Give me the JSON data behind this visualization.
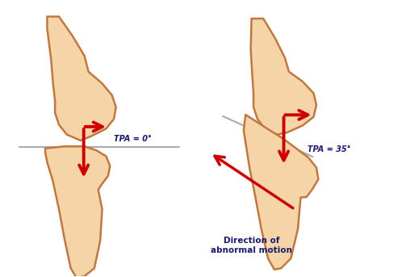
{
  "bg_color": "#ffffff",
  "bone_fill": "#F5D5A8",
  "bone_edge": "#C07840",
  "arrow_color": "#CC0000",
  "line_color": "#aaaaaa",
  "text_color_tpa": "#1a1a6e",
  "text_color_dir": "#1a1a6e",
  "tpa_label_left": "TPA = 0°",
  "tpa_label_right": "TPA = 35°",
  "dir_label_line1": "Direction of",
  "dir_label_line2": "abnormal motion",
  "fig_width": 4.87,
  "fig_height": 3.43,
  "dpi": 100
}
